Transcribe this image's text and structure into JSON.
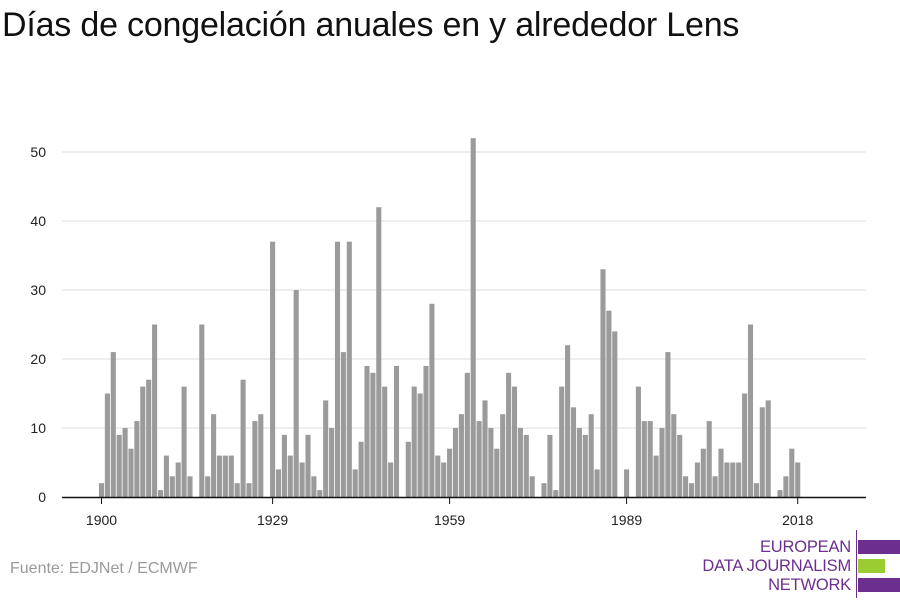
{
  "title": "Días de congelación anuales en y alrededor Lens",
  "source": "Fuente: EDJNet / ECMWF",
  "logo": {
    "lines": [
      "EUROPEAN",
      "DATA JOURNALISM",
      "NETWORK"
    ],
    "colors": {
      "purple": "#6d2f8e",
      "green": "#9acd32"
    }
  },
  "colors": {
    "bar": "#9b9b9b",
    "grid": "#dddddd",
    "axis": "#111111",
    "tick_label": "#222222"
  },
  "chart_data": {
    "type": "bar",
    "title": "Días de congelación anuales en y alrededor Lens",
    "xlabel": "",
    "ylabel": "",
    "ylim": [
      0,
      52
    ],
    "yticks": [
      0,
      10,
      20,
      30,
      40,
      50
    ],
    "xticks": [
      1900,
      1929,
      1959,
      1989,
      2018
    ],
    "grid": "horizontal",
    "x": [
      1900,
      1901,
      1902,
      1903,
      1904,
      1905,
      1906,
      1907,
      1908,
      1909,
      1910,
      1911,
      1912,
      1913,
      1914,
      1915,
      1916,
      1917,
      1918,
      1919,
      1920,
      1921,
      1922,
      1923,
      1924,
      1925,
      1926,
      1927,
      1928,
      1929,
      1930,
      1931,
      1932,
      1933,
      1934,
      1935,
      1936,
      1937,
      1938,
      1939,
      1940,
      1941,
      1942,
      1943,
      1944,
      1945,
      1946,
      1947,
      1948,
      1949,
      1950,
      1951,
      1952,
      1953,
      1954,
      1955,
      1956,
      1957,
      1958,
      1959,
      1960,
      1961,
      1962,
      1963,
      1964,
      1965,
      1966,
      1967,
      1968,
      1969,
      1970,
      1971,
      1972,
      1973,
      1974,
      1975,
      1976,
      1977,
      1978,
      1979,
      1980,
      1981,
      1982,
      1983,
      1984,
      1985,
      1986,
      1987,
      1988,
      1989,
      1990,
      1991,
      1992,
      1993,
      1994,
      1995,
      1996,
      1997,
      1998,
      1999,
      2000,
      2001,
      2002,
      2003,
      2004,
      2005,
      2006,
      2007,
      2008,
      2009,
      2010,
      2011,
      2012,
      2013,
      2014,
      2015,
      2016,
      2017,
      2018,
      2019,
      2020
    ],
    "values": [
      2,
      15,
      21,
      9,
      10,
      7,
      11,
      16,
      17,
      25,
      1,
      6,
      3,
      5,
      16,
      3,
      0,
      25,
      3,
      12,
      6,
      6,
      6,
      2,
      17,
      2,
      11,
      12,
      0,
      37,
      4,
      9,
      6,
      30,
      5,
      9,
      3,
      1,
      14,
      10,
      37,
      21,
      37,
      4,
      8,
      19,
      18,
      42,
      16,
      5,
      19,
      0,
      8,
      16,
      15,
      19,
      28,
      6,
      5,
      7,
      10,
      12,
      18,
      52,
      11,
      14,
      10,
      7,
      12,
      18,
      16,
      10,
      9,
      3,
      0,
      2,
      9,
      1,
      16,
      22,
      13,
      10,
      9,
      12,
      4,
      33,
      27,
      24,
      0,
      4,
      0,
      16,
      11,
      11,
      6,
      10,
      21,
      12,
      9,
      3,
      2,
      5,
      7,
      11,
      3,
      7,
      5,
      5,
      5,
      15,
      25,
      2,
      13,
      14,
      0,
      1,
      3,
      7,
      5,
      0,
      0
    ]
  }
}
